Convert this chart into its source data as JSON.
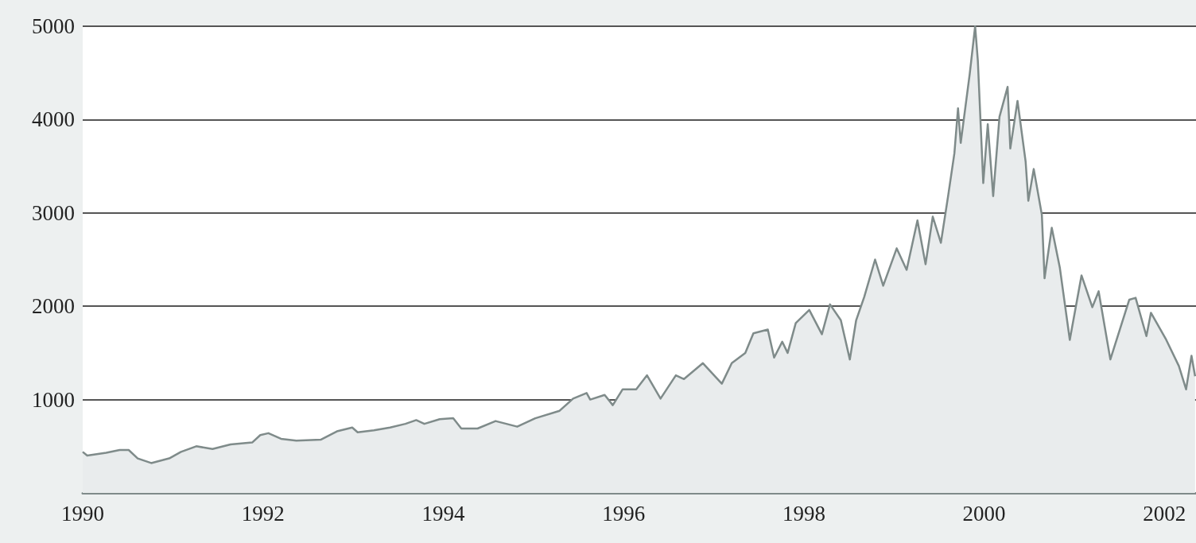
{
  "chart_data": {
    "type": "area",
    "x": [
      1990.0,
      1990.05,
      1990.26,
      1990.41,
      1990.51,
      1990.61,
      1990.76,
      1990.96,
      1991.09,
      1991.26,
      1991.44,
      1991.64,
      1991.88,
      1991.97,
      1992.06,
      1992.2,
      1992.37,
      1992.64,
      1992.82,
      1992.99,
      1993.05,
      1993.23,
      1993.41,
      1993.58,
      1993.7,
      1993.79,
      1993.96,
      1994.11,
      1994.2,
      1994.38,
      1994.58,
      1994.82,
      1995.02,
      1995.29,
      1995.44,
      1995.59,
      1995.63,
      1995.79,
      1995.88,
      1995.99,
      1996.14,
      1996.26,
      1996.41,
      1996.58,
      1996.67,
      1996.88,
      1997.09,
      1997.2,
      1997.35,
      1997.44,
      1997.6,
      1997.67,
      1997.76,
      1997.82,
      1997.91,
      1998.06,
      1998.2,
      1998.29,
      1998.41,
      1998.51,
      1998.58,
      1998.67,
      1998.79,
      1998.88,
      1999.03,
      1999.14,
      1999.26,
      1999.35,
      1999.43,
      1999.52,
      1999.6,
      1999.67,
      1999.71,
      1999.74,
      1999.84,
      1999.9,
      1999.93,
      1999.99,
      2000.04,
      2000.1,
      2000.17,
      2000.26,
      2000.29,
      2000.37,
      2000.46,
      2000.49,
      2000.55,
      2000.64,
      2000.67,
      2000.75,
      2000.84,
      2000.95,
      2001.08,
      2001.2,
      2001.27,
      2001.4,
      2001.61,
      2001.68,
      2001.8,
      2001.85,
      2002.02,
      2002.16,
      2002.24,
      2002.3,
      2002.34
    ],
    "series": [
      {
        "color": "#7f8b8a",
        "values": [
          440,
          400,
          430,
          460,
          460,
          370,
          320,
          370,
          440,
          500,
          470,
          520,
          540,
          620,
          640,
          580,
          560,
          570,
          660,
          700,
          650,
          670,
          700,
          740,
          780,
          740,
          790,
          800,
          690,
          690,
          770,
          710,
          800,
          880,
          1010,
          1070,
          1000,
          1050,
          940,
          1110,
          1110,
          1260,
          1010,
          1260,
          1220,
          1390,
          1170,
          1390,
          1500,
          1710,
          1750,
          1450,
          1620,
          1500,
          1820,
          1960,
          1700,
          2020,
          1850,
          1430,
          1850,
          2100,
          2500,
          2220,
          2620,
          2390,
          2920,
          2450,
          2960,
          2680,
          3180,
          3640,
          4120,
          3750,
          4490,
          5000,
          4630,
          3320,
          3950,
          3180,
          4030,
          4350,
          3690,
          4200,
          3550,
          3130,
          3470,
          2980,
          2300,
          2840,
          2410,
          1640,
          2330,
          1990,
          2160,
          1430,
          2070,
          2090,
          1680,
          1930,
          1640,
          1360,
          1110,
          1470,
          1250
        ]
      }
    ],
    "xlim": [
      1990,
      2002.35
    ],
    "xticks": [
      1990,
      1992,
      1994,
      1996,
      1998,
      2000,
      2002
    ],
    "ylim": [
      0,
      5000
    ],
    "yticks": [
      1000,
      2000,
      3000,
      4000,
      5000
    ],
    "grid": "y"
  }
}
